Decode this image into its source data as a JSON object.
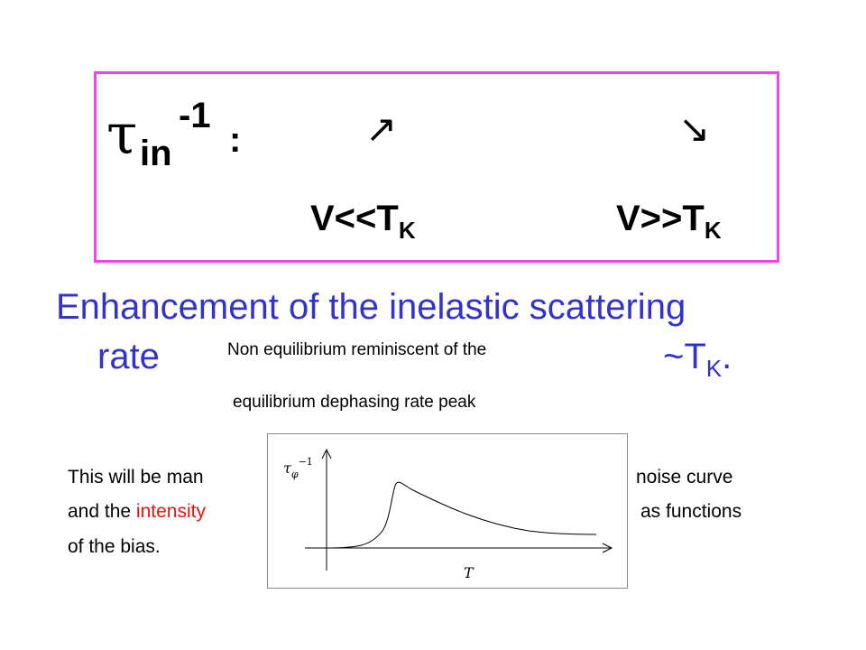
{
  "box": {
    "symbol": "τ",
    "symbol_sub": "in",
    "symbol_sup": "-1",
    "colon": ":",
    "arrow_rise": "↗",
    "arrow_fall": "↘",
    "low": {
      "text": "V<<T",
      "sub": "K"
    },
    "high": {
      "text": "V>>T",
      "sub": "K"
    }
  },
  "heading": {
    "line1": "Enhancement of the inelastic scattering",
    "line2_start": "rate",
    "line2_end": "~T",
    "line2_end_sub": "K",
    "line2_period": "."
  },
  "overlay": {
    "line1": "Non equilibrium reminiscent of the",
    "line2": "equilibrium dephasing rate peak"
  },
  "paragraph": {
    "line1_start": "This will be man",
    "line1_end": "noise curve",
    "line2_start": "and the",
    "line2_red": "intensity",
    "line2_end": "as functions",
    "line3": "of the bias."
  },
  "inset": {
    "y_label": "τ",
    "y_label_sub": "φ",
    "y_label_sup": "−1",
    "x_label": "T"
  }
}
